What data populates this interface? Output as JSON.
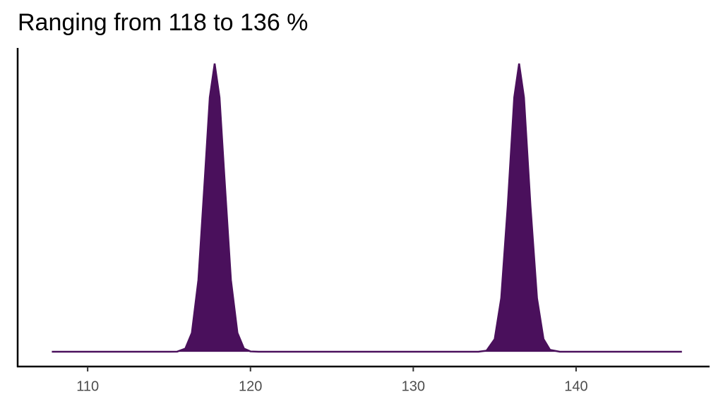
{
  "chart_data": {
    "type": "density",
    "title": "Ranging from 118 to 136 %",
    "x": [
      107.8,
      110,
      112,
      114,
      115,
      115.5,
      116,
      116.4,
      116.8,
      117.2,
      117.5,
      117.8,
      118.1,
      118.4,
      118.8,
      119.2,
      119.6,
      120,
      120.5,
      121,
      125,
      130,
      133,
      134,
      134.5,
      135,
      135.4,
      135.8,
      136.2,
      136.5,
      136.8,
      137.2,
      137.6,
      138,
      138.4,
      139,
      139.5,
      140,
      143,
      146.5
    ],
    "values": [
      0,
      0,
      0,
      0,
      0,
      0.0002,
      0.0037,
      0.0218,
      0.0828,
      0.2014,
      0.293,
      0.332,
      0.293,
      0.2014,
      0.0828,
      0.0218,
      0.0037,
      0.0004,
      0,
      0,
      0,
      0,
      0,
      0.0001,
      0.0013,
      0.0146,
      0.0618,
      0.168,
      0.293,
      0.332,
      0.293,
      0.168,
      0.0618,
      0.0146,
      0.0022,
      0.0001,
      0,
      0,
      0,
      0
    ],
    "color": "#4a105c",
    "xlim": [
      105.7,
      148.2
    ],
    "xticks": [
      110,
      120,
      130,
      140
    ],
    "ylim": [
      -0.017,
      0.35
    ]
  }
}
